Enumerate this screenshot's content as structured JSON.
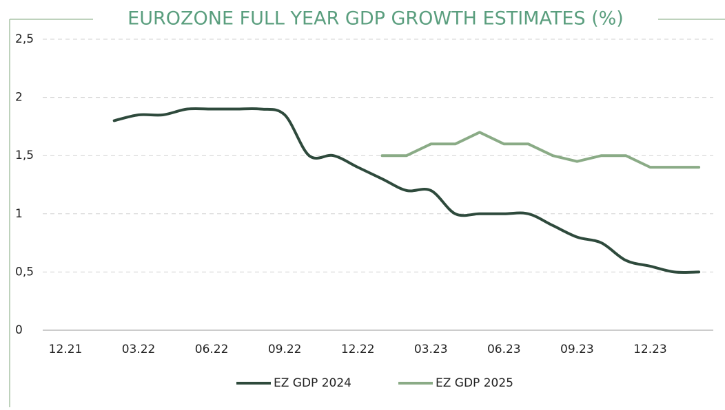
{
  "chart_data": {
    "type": "line",
    "title": "EUROZONE FULL YEAR GDP GROWTH ESTIMATES (%)",
    "categories": [
      "12.21",
      null,
      null,
      "03.22",
      null,
      null,
      "06.22",
      null,
      null,
      "09.22",
      null,
      null,
      "12.22",
      null,
      null,
      "03.23",
      null,
      null,
      "06.23",
      null,
      null,
      "09.23",
      null,
      null,
      "12.23",
      null,
      null
    ],
    "series": [
      {
        "name": "EZ GDP 2024",
        "color": "#2e4a3c",
        "smooth": true,
        "values": [
          null,
          null,
          1.8,
          1.85,
          1.85,
          1.9,
          1.9,
          1.9,
          1.9,
          1.85,
          1.5,
          1.5,
          1.4,
          1.3,
          1.2,
          1.2,
          1.0,
          1.0,
          1.0,
          1.0,
          0.9,
          0.8,
          0.75,
          0.6,
          0.55,
          0.5,
          0.5
        ]
      },
      {
        "name": "EZ GDP 2025",
        "color": "#8aab86",
        "smooth": false,
        "values": [
          null,
          null,
          null,
          null,
          null,
          null,
          null,
          null,
          null,
          null,
          null,
          null,
          null,
          1.5,
          1.5,
          1.6,
          1.6,
          1.7,
          1.6,
          1.6,
          1.5,
          1.45,
          1.5,
          1.5,
          1.4,
          1.4,
          1.4
        ]
      }
    ],
    "ylim": [
      0,
      2.5
    ],
    "yticks": [
      0,
      {
        "value": 0.5,
        "label": "0,5"
      },
      1,
      {
        "value": 1.5,
        "label": "1,5"
      },
      2,
      {
        "value": 2.5,
        "label": "2,5"
      }
    ],
    "grid": true
  }
}
